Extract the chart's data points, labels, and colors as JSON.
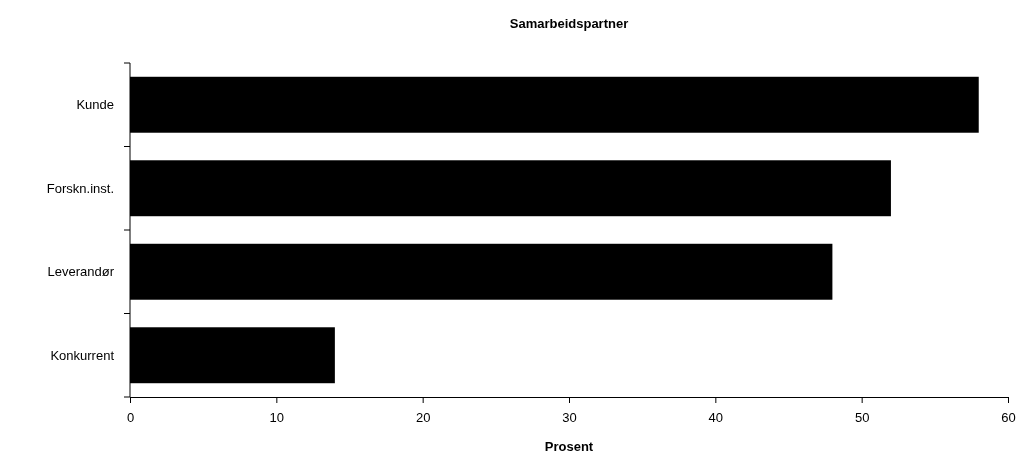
{
  "chart_data": {
    "type": "bar",
    "orientation": "horizontal",
    "title": "Samarbeidspartner",
    "xlabel": "Prosent",
    "categories": [
      "Kunde",
      "Forskn.inst.",
      "Leverandør",
      "Konkurrent"
    ],
    "values": [
      58,
      52,
      48,
      14
    ],
    "color": "#000000",
    "xlim": [
      0,
      60
    ],
    "xticks": [
      0,
      10,
      20,
      30,
      40,
      50,
      60
    ],
    "grid": false
  }
}
